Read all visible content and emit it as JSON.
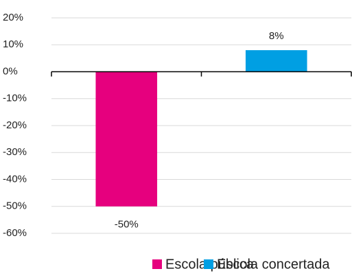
{
  "chart_data": {
    "type": "bar",
    "categories": [
      null,
      null
    ],
    "series": [
      {
        "name": "Escola pública",
        "color": "#e6007e",
        "values": [
          -50,
          null
        ],
        "value_labels": [
          "-50%",
          null
        ]
      },
      {
        "name": "Escola concertada",
        "color": "#009fe3",
        "values": [
          null,
          8
        ],
        "value_labels": [
          null,
          "8%"
        ]
      }
    ],
    "ylim": [
      -60,
      20
    ],
    "yticks": [
      {
        "value": 20,
        "label": "20%"
      },
      {
        "value": 10,
        "label": "10%"
      },
      {
        "value": 0,
        "label": "0%"
      },
      {
        "value": -10,
        "label": "-10%"
      },
      {
        "value": -20,
        "label": "-20%"
      },
      {
        "value": -30,
        "label": "-30%"
      },
      {
        "value": -40,
        "label": "-40%"
      },
      {
        "value": -50,
        "label": "-50%"
      },
      {
        "value": -60,
        "label": "-60%"
      }
    ],
    "grid": true,
    "legend": "bottom"
  }
}
